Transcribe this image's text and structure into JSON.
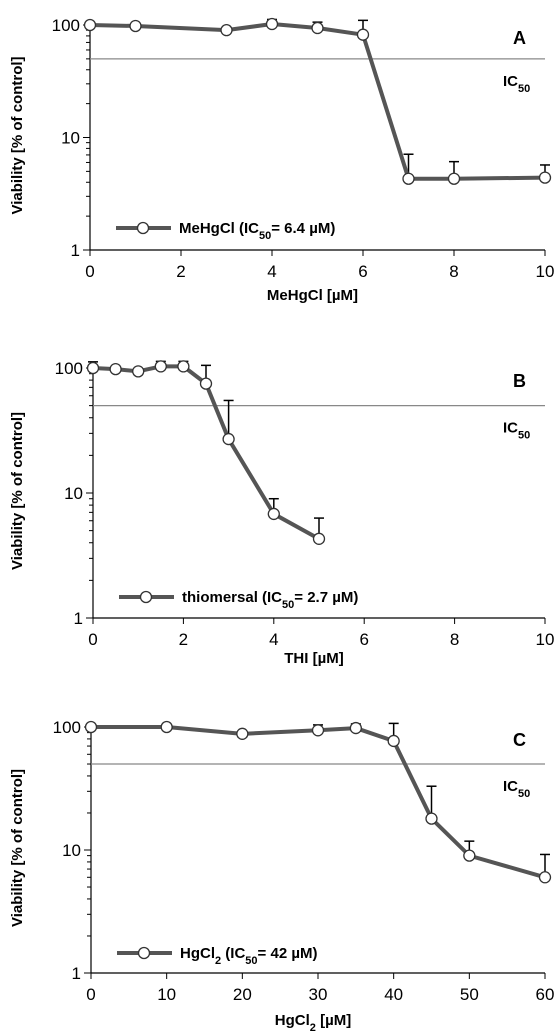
{
  "chart_data": [
    {
      "type": "line",
      "panel_letter": "A",
      "y_scale": "log",
      "ylim": [
        1,
        100
      ],
      "xlim": [
        0,
        10
      ],
      "x_ticks": [
        "0",
        "2",
        "4",
        "6",
        "8",
        "10"
      ],
      "y_ticks": [
        "1",
        "10",
        "100"
      ],
      "xlabel": "MeHgCl [µM]",
      "ylabel": "Viability [% of control]",
      "reference_line": {
        "value": 50,
        "label": "IC",
        "label_sub": "50"
      },
      "legend": {
        "pre": "MeHgCl (IC",
        "sub": "50",
        "post": "= 6.4 µM)"
      },
      "series": [
        {
          "x": [
            0,
            1,
            3,
            4,
            5,
            6,
            7,
            8,
            10
          ],
          "y": [
            100,
            98,
            90,
            102,
            94,
            82,
            4.3,
            4.3,
            4.4
          ],
          "err": [
            0,
            0,
            0,
            10,
            12,
            28,
            2.8,
            1.8,
            1.3
          ]
        }
      ],
      "colors": {
        "line": "#555555",
        "marker_fill": "#ffffff",
        "marker_edge": "#333333",
        "ref_line": "#888888"
      }
    },
    {
      "type": "line",
      "panel_letter": "B",
      "y_scale": "log",
      "ylim": [
        1,
        100
      ],
      "xlim": [
        0,
        10
      ],
      "x_ticks": [
        "0",
        "2",
        "4",
        "6",
        "8",
        "10"
      ],
      "y_ticks": [
        "1",
        "10",
        "100"
      ],
      "xlabel": "THI [µM]",
      "ylabel": "Viability [% of control]",
      "reference_line": {
        "value": 50,
        "label": "IC",
        "label_sub": "50"
      },
      "legend": {
        "pre": "thiomersal (IC",
        "sub": "50",
        "post": "= 2.7 µM)"
      },
      "series": [
        {
          "x": [
            0,
            0.5,
            1,
            1.5,
            2,
            2.5,
            3,
            4,
            5
          ],
          "y": [
            100,
            98,
            94,
            103,
            103,
            75,
            27,
            6.8,
            4.3
          ],
          "err": [
            12,
            0,
            0,
            10,
            10,
            30,
            28,
            2.2,
            2
          ]
        }
      ],
      "colors": {
        "line": "#555555",
        "marker_fill": "#ffffff",
        "marker_edge": "#333333",
        "ref_line": "#888888"
      }
    },
    {
      "type": "line",
      "panel_letter": "C",
      "y_scale": "log",
      "ylim": [
        1,
        100
      ],
      "xlim": [
        0,
        60
      ],
      "x_ticks": [
        "0",
        "10",
        "20",
        "30",
        "40",
        "50",
        "60"
      ],
      "y_ticks": [
        "1",
        "10",
        "100"
      ],
      "xlabel_pre": "HgCl",
      "xlabel_sub": "2",
      "xlabel_post": " [µM]",
      "ylabel": "Viability [% of control]",
      "reference_line": {
        "value": 50,
        "label": "IC",
        "label_sub": "50"
      },
      "legend": {
        "pre": "HgCl",
        "sub1": "2",
        "mid": " (IC",
        "sub": "50",
        "post": "= 42 µM)"
      },
      "series": [
        {
          "x": [
            0,
            10,
            20,
            30,
            35,
            40,
            45,
            50,
            60
          ],
          "y": [
            100,
            100,
            88,
            94,
            98,
            77,
            18,
            9,
            6
          ],
          "err": [
            0,
            0,
            0,
            10,
            8,
            30,
            15,
            2.8,
            3.2
          ]
        }
      ],
      "colors": {
        "line": "#555555",
        "marker_fill": "#ffffff",
        "marker_edge": "#333333",
        "ref_line": "#888888"
      }
    }
  ]
}
